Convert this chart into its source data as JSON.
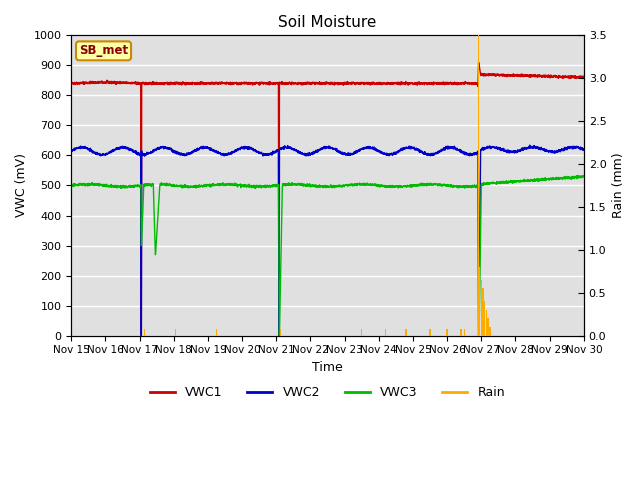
{
  "title": "Soil Moisture",
  "xlabel": "Time",
  "ylabel_left": "VWC (mV)",
  "ylabel_right": "Rain (mm)",
  "xlim": [
    0,
    15
  ],
  "ylim_left": [
    0,
    1000
  ],
  "ylim_right": [
    0,
    3.5
  ],
  "yticks_left": [
    0,
    100,
    200,
    300,
    400,
    500,
    600,
    700,
    800,
    900,
    1000
  ],
  "yticks_right": [
    0.0,
    0.5,
    1.0,
    1.5,
    2.0,
    2.5,
    3.0,
    3.5
  ],
  "xtick_labels": [
    "Nov 15",
    "Nov 16",
    "Nov 17",
    "Nov 18",
    "Nov 19",
    "Nov 20",
    "Nov 21",
    "Nov 22",
    "Nov 23",
    "Nov 24",
    "Nov 25",
    "Nov 26",
    "Nov 27",
    "Nov 28",
    "Nov 29",
    "Nov 30"
  ],
  "station_label": "SB_met",
  "background_color": "#e0e0e0",
  "colors": {
    "VWC1": "#cc0000",
    "VWC2": "#0000cc",
    "VWC3": "#00bb00",
    "Rain": "#ffaa00"
  },
  "vwc1_base": 840,
  "vwc2_base": 615,
  "vwc3_base": 500,
  "drop1_day": 2.05,
  "drop2_day": 6.08,
  "drop3_day": 11.92,
  "spike_height": 910,
  "spike_day": 11.95,
  "rain_small_days": [
    2.15,
    3.05,
    4.25,
    6.12,
    8.5,
    9.2,
    9.8,
    10.5,
    11.0,
    11.4,
    11.5
  ],
  "rain_small_val": 0.08,
  "rain_big_days": [
    11.92,
    11.95,
    12.0,
    12.05,
    12.1,
    12.15,
    12.2,
    12.25
  ],
  "rain_big_vals": [
    3.5,
    0.8,
    0.65,
    0.55,
    0.4,
    0.3,
    0.2,
    0.1
  ]
}
